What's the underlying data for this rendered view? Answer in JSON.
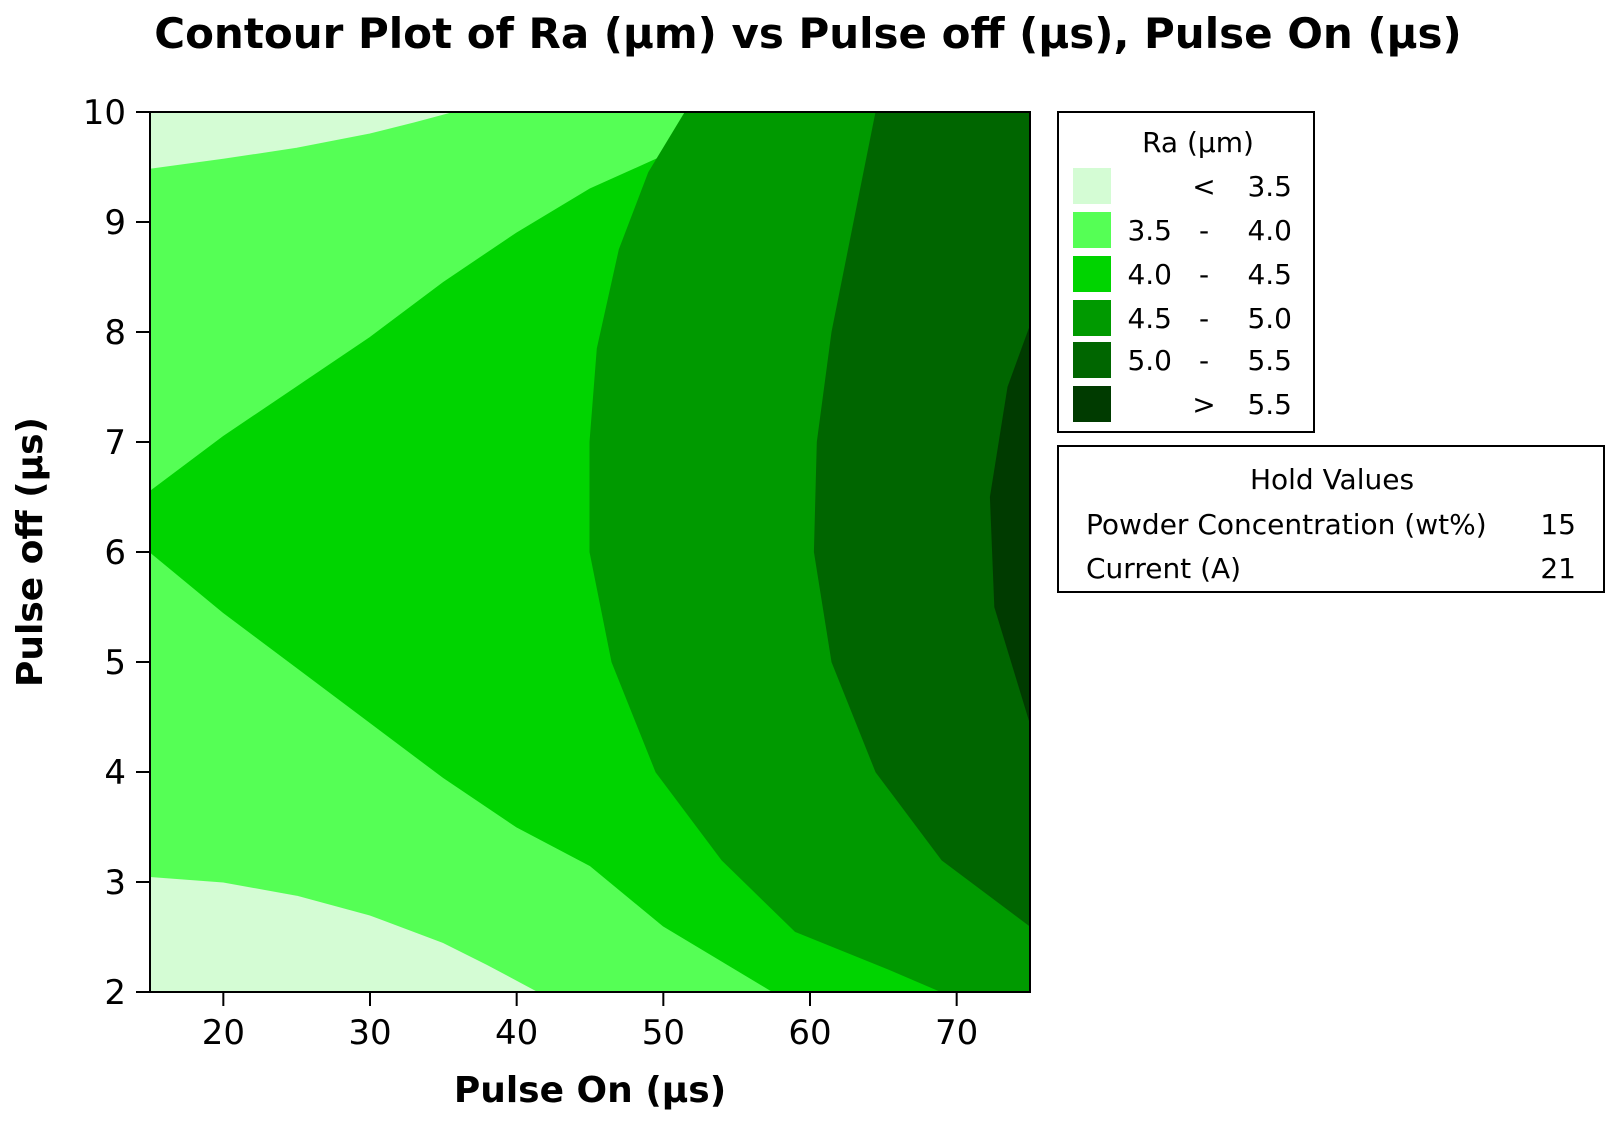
{
  "chart_data": {
    "type": "contour",
    "title": "Contour Plot of Ra (µm) vs Pulse off (µs), Pulse On (µs)",
    "xlabel": "Pulse On (µs)",
    "ylabel": "Pulse off (µs)",
    "xlim": [
      15,
      75
    ],
    "ylim": [
      2,
      10
    ],
    "x_ticks": [
      20,
      30,
      40,
      50,
      60,
      70
    ],
    "y_ticks": [
      2,
      3,
      4,
      5,
      6,
      7,
      8,
      9,
      10
    ],
    "grid": false,
    "legend": {
      "title": "Ra (µm)",
      "placement": "right",
      "levels": [
        {
          "low": "",
          "sep": "<",
          "high": "3.5",
          "color": "#d4fcd4"
        },
        {
          "low": "3.5",
          "sep": "-",
          "high": "4.0",
          "color": "#55ff55"
        },
        {
          "low": "4.0",
          "sep": "-",
          "high": "4.5",
          "color": "#00d400"
        },
        {
          "low": "4.5",
          "sep": "-",
          "high": "5.0",
          "color": "#009a00"
        },
        {
          "low": "5.0",
          "sep": "-",
          "high": "5.5",
          "color": "#006600"
        },
        {
          "low": "",
          "sep": ">",
          "high": "5.5",
          "color": "#003b00"
        }
      ]
    },
    "hold_values": {
      "title": "Hold Values",
      "items": [
        {
          "name": "Powder Concentration (wt%)",
          "value": "15"
        },
        {
          "name": "Current (A)",
          "value": "21"
        }
      ]
    },
    "contour_boundaries": [
      {
        "level": 3.5,
        "segments": [
          [
            [
              15,
              9.48
            ],
            [
              20,
              9.57
            ],
            [
              25,
              9.67
            ],
            [
              30,
              9.8
            ],
            [
              33,
              9.9
            ],
            [
              35.8,
              10
            ]
          ],
          [
            [
              15,
              3.05
            ],
            [
              20,
              3.0
            ],
            [
              25,
              2.88
            ],
            [
              30,
              2.7
            ],
            [
              35,
              2.45
            ],
            [
              38,
              2.25
            ],
            [
              41.5,
              2
            ]
          ]
        ]
      },
      {
        "level": 4.0,
        "segments": [
          [
            [
              15,
              6.55
            ],
            [
              20,
              7.05
            ],
            [
              25,
              7.5
            ],
            [
              30,
              7.95
            ],
            [
              35,
              8.45
            ],
            [
              40,
              8.9
            ],
            [
              45,
              9.3
            ],
            [
              50,
              9.6
            ],
            [
              55,
              10
            ]
          ],
          [
            [
              15,
              6.0
            ],
            [
              20,
              5.45
            ],
            [
              25,
              4.95
            ],
            [
              30,
              4.45
            ],
            [
              35,
              3.95
            ],
            [
              40,
              3.5
            ],
            [
              45,
              3.15
            ],
            [
              50,
              2.6
            ],
            [
              57.5,
              2
            ]
          ]
        ]
      },
      {
        "level": 4.5,
        "segments": [
          [
            [
              51.5,
              10
            ],
            [
              49,
              9.45
            ],
            [
              47,
              8.75
            ],
            [
              45.5,
              7.85
            ],
            [
              45,
              7.0
            ],
            [
              45,
              6.0
            ],
            [
              46.5,
              5.0
            ],
            [
              49.5,
              4.0
            ],
            [
              54,
              3.2
            ],
            [
              59,
              2.55
            ],
            [
              65.5,
              2.2
            ],
            [
              69,
              2
            ]
          ]
        ]
      },
      {
        "level": 5.0,
        "segments": [
          [
            [
              64.5,
              10
            ],
            [
              63,
              9.0
            ],
            [
              61.5,
              8.0
            ],
            [
              60.5,
              7.0
            ],
            [
              60.3,
              6.0
            ],
            [
              61.5,
              5.0
            ],
            [
              64.5,
              4.0
            ],
            [
              69,
              3.2
            ],
            [
              75,
              2.6
            ]
          ]
        ]
      },
      {
        "level": 5.5,
        "segments": [
          [
            [
              75,
              8.05
            ],
            [
              73.5,
              7.5
            ],
            [
              72.3,
              6.5
            ],
            [
              72.6,
              5.5
            ],
            [
              75,
              4.45
            ]
          ]
        ]
      }
    ]
  }
}
